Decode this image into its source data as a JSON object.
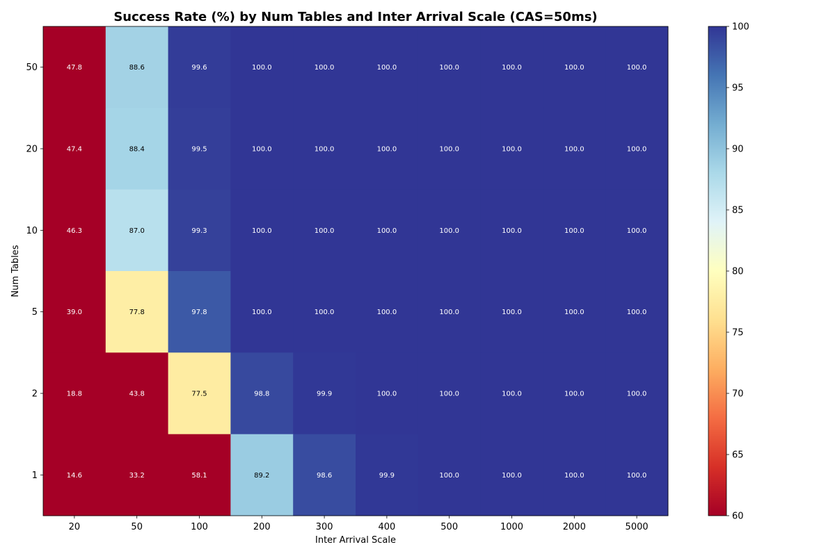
{
  "chart_data": {
    "type": "heatmap",
    "title": "Success Rate (%) by Num Tables and Inter Arrival Scale (CAS=50ms)",
    "xlabel": "Inter Arrival Scale",
    "ylabel": "Num Tables",
    "x_categories": [
      "20",
      "50",
      "100",
      "200",
      "300",
      "400",
      "500",
      "1000",
      "2000",
      "5000"
    ],
    "y_categories_top_to_bottom": [
      "50",
      "20",
      "10",
      "5",
      "2",
      "1"
    ],
    "values": [
      [
        47.8,
        88.6,
        99.6,
        100.0,
        100.0,
        100.0,
        100.0,
        100.0,
        100.0,
        100.0
      ],
      [
        47.4,
        88.4,
        99.5,
        100.0,
        100.0,
        100.0,
        100.0,
        100.0,
        100.0,
        100.0
      ],
      [
        46.3,
        87.0,
        99.3,
        100.0,
        100.0,
        100.0,
        100.0,
        100.0,
        100.0,
        100.0
      ],
      [
        39.0,
        77.8,
        97.8,
        100.0,
        100.0,
        100.0,
        100.0,
        100.0,
        100.0,
        100.0
      ],
      [
        18.8,
        43.8,
        77.5,
        98.8,
        99.9,
        100.0,
        100.0,
        100.0,
        100.0,
        100.0
      ],
      [
        14.6,
        33.2,
        58.1,
        89.2,
        98.6,
        99.9,
        100.0,
        100.0,
        100.0,
        100.0
      ]
    ],
    "value_labels": [
      [
        "47.8",
        "88.6",
        "99.6",
        "100.0",
        "100.0",
        "100.0",
        "100.0",
        "100.0",
        "100.0",
        "100.0"
      ],
      [
        "47.4",
        "88.4",
        "99.5",
        "100.0",
        "100.0",
        "100.0",
        "100.0",
        "100.0",
        "100.0",
        "100.0"
      ],
      [
        "46.3",
        "87.0",
        "99.3",
        "100.0",
        "100.0",
        "100.0",
        "100.0",
        "100.0",
        "100.0",
        "100.0"
      ],
      [
        "39.0",
        "77.8",
        "97.8",
        "100.0",
        "100.0",
        "100.0",
        "100.0",
        "100.0",
        "100.0",
        "100.0"
      ],
      [
        "18.8",
        "43.8",
        "77.5",
        "98.8",
        "99.9",
        "100.0",
        "100.0",
        "100.0",
        "100.0",
        "100.0"
      ],
      [
        "14.6",
        "33.2",
        "58.1",
        "89.2",
        "98.6",
        "99.9",
        "100.0",
        "100.0",
        "100.0",
        "100.0"
      ]
    ],
    "colorbar": {
      "range": [
        60,
        100
      ],
      "ticks": [
        "60",
        "65",
        "70",
        "75",
        "80",
        "85",
        "90",
        "95",
        "100"
      ],
      "colormap": "RdYlBu",
      "placement": "right"
    },
    "grid": false
  }
}
